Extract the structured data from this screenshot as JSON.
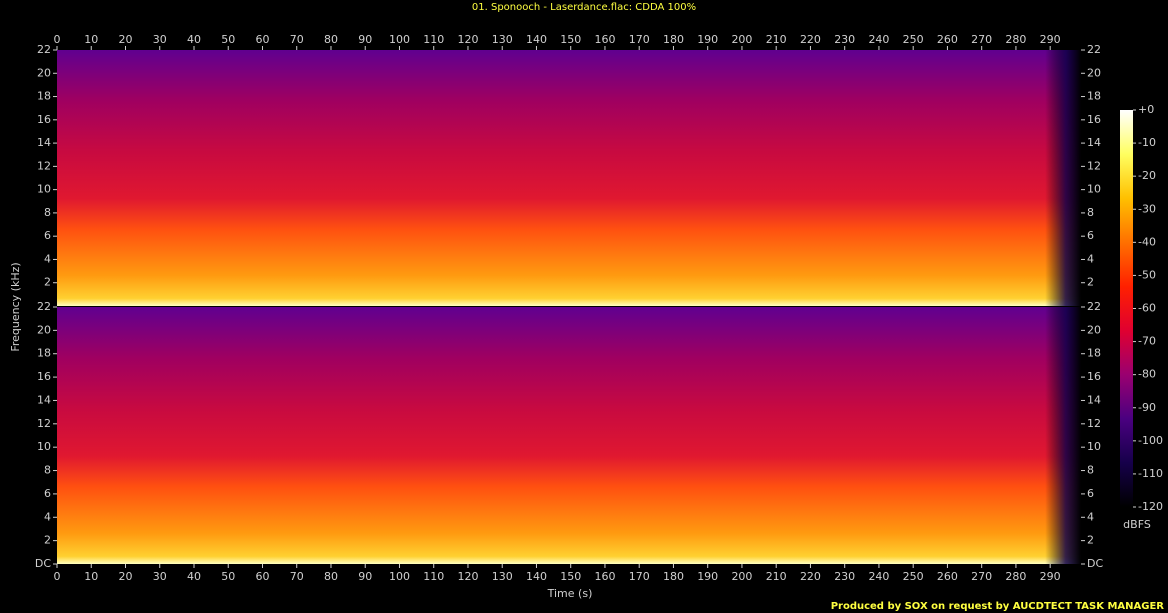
{
  "chart_data": {
    "type": "spectrogram",
    "title": "01. Sponooch - Laserdance.flac: CDDA 100%",
    "footer": "Produced by SOX on request by AUCDTECT TASK MANAGER",
    "xlabel": "Time (s)",
    "ylabel": "Frequency (kHz)",
    "xlim": [
      0,
      299
    ],
    "xticks": [
      0,
      10,
      20,
      30,
      40,
      50,
      60,
      70,
      80,
      90,
      100,
      110,
      120,
      130,
      140,
      150,
      160,
      170,
      180,
      190,
      200,
      210,
      220,
      230,
      240,
      250,
      260,
      270,
      280,
      290
    ],
    "channels": [
      {
        "ylim": [
          0,
          22
        ],
        "yticks": [
          2,
          4,
          6,
          8,
          10,
          12,
          14,
          16,
          18,
          20,
          22
        ]
      },
      {
        "ylim": [
          0,
          22
        ],
        "yticks": [
          {
            "value": 0,
            "label": "DC"
          },
          2,
          4,
          6,
          8,
          10,
          12,
          14,
          16,
          18,
          20,
          22
        ]
      }
    ],
    "colorbar": {
      "label": "dBFS",
      "lim": [
        -120,
        0
      ],
      "ticks": [
        {
          "value": 0,
          "label": "+0"
        },
        -10,
        -20,
        -30,
        -40,
        -50,
        -60,
        -70,
        -80,
        -90,
        -100,
        -110,
        -120
      ],
      "colormap": [
        "#000000",
        "#16004a",
        "#4a0080",
        "#9a0070",
        "#e00030",
        "#ff2000",
        "#ff7000",
        "#ffc000",
        "#ffff60",
        "#ffffff"
      ]
    }
  }
}
